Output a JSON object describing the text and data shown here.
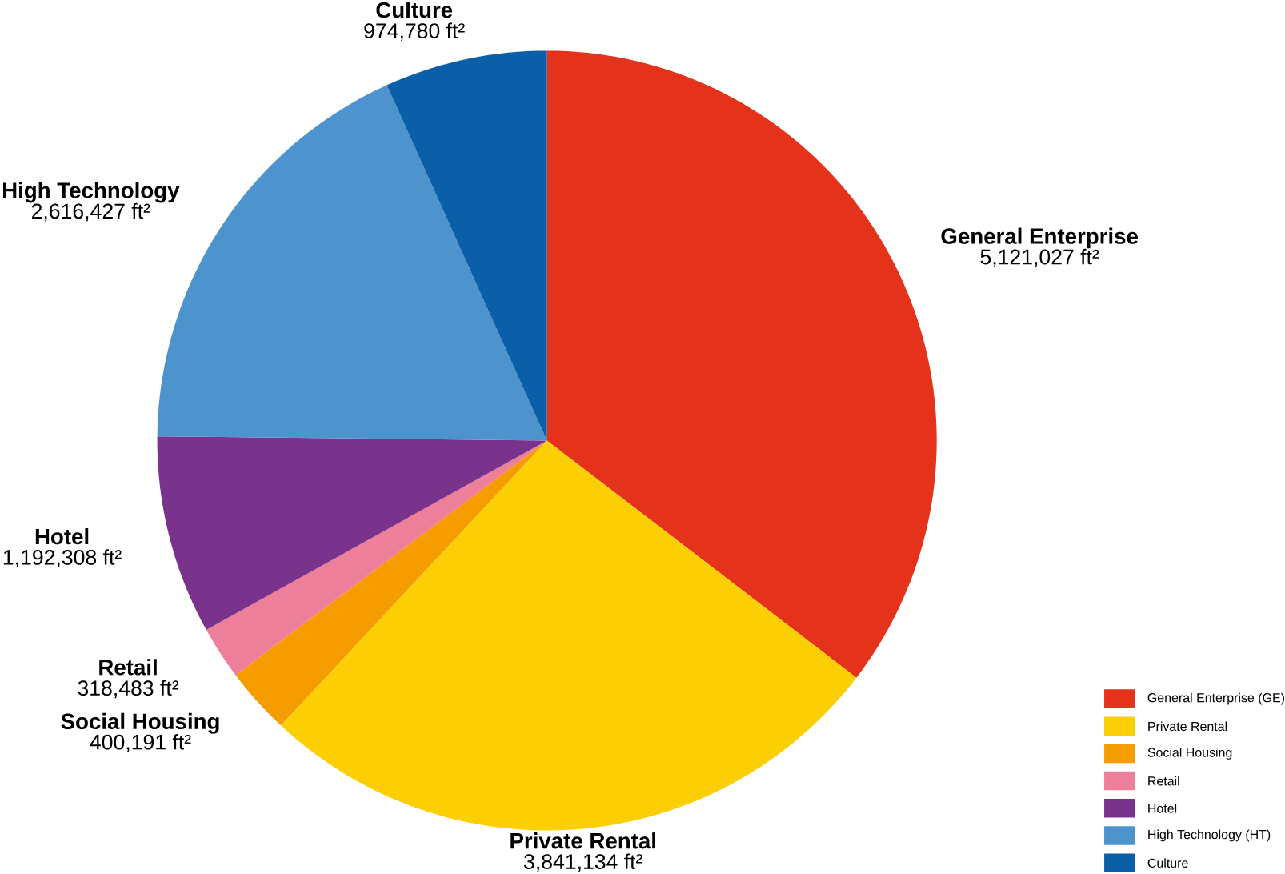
{
  "chart_data": {
    "type": "pie",
    "categories": [
      "General Enterprise (GE)",
      "Private Rental",
      "Social Housing",
      "Retail",
      "Hotel",
      "High Technology (HT)",
      "Culture"
    ],
    "values": [
      5121027,
      3841134,
      400191,
      318483,
      1192308,
      2616427,
      974780
    ],
    "colors": [
      "#e4321b",
      "#fccf05",
      "#f59c00",
      "#ee7f9b",
      "#7a338c",
      "#4d94cf",
      "#0b5ea8"
    ],
    "value_labels": [
      "5,121,027 ft²",
      "3,841,134 ft²",
      "400,191 ft²",
      "318,483 ft²",
      "1,192,308 ft²",
      "2,616,427 ft²",
      "974,780 ft²"
    ],
    "annotations": [
      {
        "text": "General Enterprise",
        "x": "General Enterprise (GE)"
      },
      {
        "text": "Private Rental",
        "x": "Private Rental"
      },
      {
        "text": "Social Housing",
        "x": "Social Housing"
      },
      {
        "text": "Retail",
        "x": "Retail"
      },
      {
        "text": "Hotel",
        "x": "Hotel"
      },
      {
        "text": "High Technology",
        "x": "High Technology (HT)"
      },
      {
        "text": "Culture",
        "x": "Culture"
      }
    ],
    "legend": "bottom right"
  }
}
